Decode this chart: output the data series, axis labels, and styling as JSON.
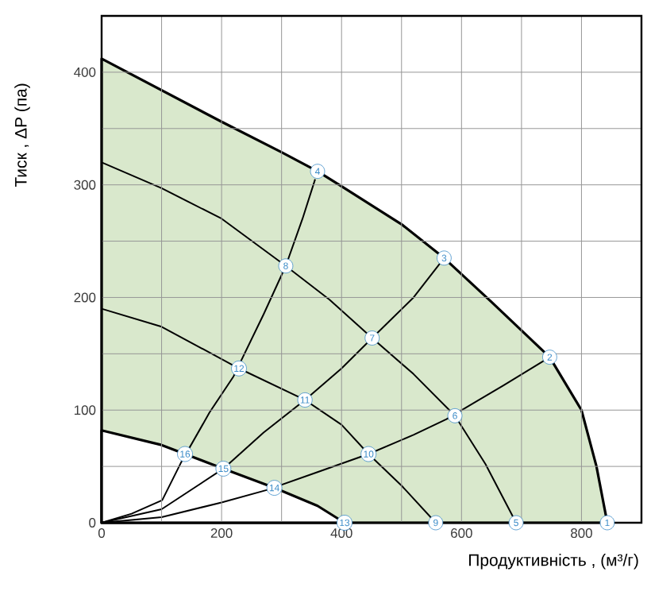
{
  "chart_data": {
    "type": "line",
    "xlabel": "Продуктивність , (м³/г)",
    "ylabel": "Тиск , ΔP (па)",
    "xlim": [
      0,
      900
    ],
    "ylim": [
      0,
      450
    ],
    "xticks": [
      0,
      {
        "value": 100,
        "label": null
      },
      200,
      {
        "value": 300,
        "label": null
      },
      400,
      {
        "value": 500,
        "label": null
      },
      600,
      {
        "value": 700,
        "label": null
      },
      800,
      {
        "value": 900,
        "label": null
      }
    ],
    "yticks": [
      0,
      {
        "value": 50,
        "label": null
      },
      100,
      {
        "value": 150,
        "label": null
      },
      200,
      {
        "value": 250,
        "label": null
      },
      300,
      {
        "value": 350,
        "label": null
      },
      400,
      {
        "value": 450,
        "label": null
      }
    ],
    "grid": true,
    "series": [
      {
        "type": "area",
        "color": "#d9e8cc",
        "x": [
          0,
          100,
          200,
          300,
          360,
          405,
          500,
          571,
          650,
          747,
          800,
          825,
          843
        ],
        "values": [
          412,
          384,
          356,
          329,
          312,
          297,
          265,
          235,
          196,
          147,
          100,
          50,
          0
        ]
      },
      {
        "type": "area",
        "color": "#ffffff",
        "x": [
          0,
          100,
          139,
          203,
          288,
          360,
          405
        ],
        "values": [
          82,
          69,
          61,
          48,
          31,
          15,
          0
        ]
      },
      {
        "color": "#000000",
        "x": [
          0,
          100,
          200,
          307,
          380,
          451,
          520,
          589,
          640,
          691
        ],
        "values": [
          320,
          297,
          270,
          228,
          198,
          164,
          132,
          95,
          52,
          0
        ]
      },
      {
        "color": "#000000",
        "x": [
          0,
          100,
          229,
          339,
          400,
          445,
          500,
          557
        ],
        "values": [
          190,
          174,
          137,
          109,
          87,
          61,
          33,
          0
        ]
      },
      {
        "color": "#000000",
        "x": [
          0,
          50,
          101,
          132,
          180,
          220,
          270,
          307,
          335,
          356
        ],
        "values": [
          0,
          8,
          20,
          53,
          98,
          130,
          185,
          228,
          270,
          305
        ]
      },
      {
        "color": "#000000",
        "x": [
          0,
          100,
          203,
          270,
          339,
          400,
          451,
          520,
          571
        ],
        "values": [
          0,
          12,
          48,
          80,
          109,
          137,
          164,
          200,
          235
        ]
      },
      {
        "color": "#000000",
        "x": [
          0,
          100,
          200,
          275,
          360,
          445,
          520,
          575,
          670,
          747
        ],
        "values": [
          0,
          5,
          18,
          29,
          45,
          61,
          78,
          92,
          122,
          147
        ]
      }
    ],
    "annotations": [
      {
        "text": "1",
        "x": 843,
        "y": 0
      },
      {
        "text": "2",
        "x": 747,
        "y": 147
      },
      {
        "text": "3",
        "x": 571,
        "y": 235
      },
      {
        "text": "4",
        "x": 360,
        "y": 312
      },
      {
        "text": "5",
        "x": 691,
        "y": 0
      },
      {
        "text": "6",
        "x": 589,
        "y": 95
      },
      {
        "text": "7",
        "x": 451,
        "y": 164
      },
      {
        "text": "8",
        "x": 307,
        "y": 228
      },
      {
        "text": "9",
        "x": 557,
        "y": 0
      },
      {
        "text": "10",
        "x": 445,
        "y": 61
      },
      {
        "text": "11",
        "x": 339,
        "y": 109
      },
      {
        "text": "12",
        "x": 229,
        "y": 137
      },
      {
        "text": "13",
        "x": 405,
        "y": 0
      },
      {
        "text": "14",
        "x": 288,
        "y": 31
      },
      {
        "text": "15",
        "x": 203,
        "y": 48
      },
      {
        "text": "16",
        "x": 139,
        "y": 61
      }
    ]
  }
}
